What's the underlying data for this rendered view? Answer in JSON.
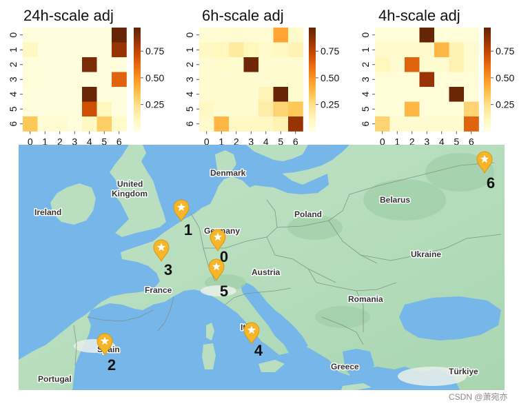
{
  "chart_data": [
    {
      "type": "heatmap",
      "title": "24h-scale adj",
      "x_ticks": [
        "0",
        "1",
        "2",
        "3",
        "4",
        "5",
        "6"
      ],
      "y_ticks": [
        "0",
        "1",
        "2",
        "3",
        "4",
        "5",
        "6"
      ],
      "values": [
        [
          0.03,
          0.03,
          0.03,
          0.03,
          0.03,
          0.03,
          0.97
        ],
        [
          0.1,
          0.03,
          0.03,
          0.03,
          0.03,
          0.03,
          0.85
        ],
        [
          0.03,
          0.03,
          0.03,
          0.03,
          0.92,
          0.03,
          0.03
        ],
        [
          0.04,
          0.03,
          0.03,
          0.03,
          0.03,
          0.03,
          0.65
        ],
        [
          0.03,
          0.03,
          0.03,
          0.03,
          0.96,
          0.03,
          0.03
        ],
        [
          0.03,
          0.03,
          0.03,
          0.03,
          0.72,
          0.12,
          0.03
        ],
        [
          0.35,
          0.05,
          0.06,
          0.03,
          0.1,
          0.32,
          0.08
        ]
      ],
      "colorbar_ticks": [
        0.25,
        0.5,
        0.75
      ],
      "colorbar_labels": [
        "0.25",
        "0.50",
        "0.75"
      ],
      "vmin": 0.0,
      "vmax": 0.97,
      "colormap": "YlOrBr"
    },
    {
      "type": "heatmap",
      "title": "6h-scale adj",
      "x_ticks": [
        "0",
        "1",
        "2",
        "3",
        "4",
        "5",
        "6"
      ],
      "y_ticks": [
        "0",
        "1",
        "2",
        "3",
        "4",
        "5",
        "6"
      ],
      "values": [
        [
          0.05,
          0.05,
          0.06,
          0.05,
          0.05,
          0.45,
          0.08
        ],
        [
          0.1,
          0.12,
          0.2,
          0.12,
          0.08,
          0.1,
          0.15
        ],
        [
          0.06,
          0.08,
          0.06,
          0.95,
          0.06,
          0.06,
          0.06
        ],
        [
          0.06,
          0.06,
          0.06,
          0.06,
          0.06,
          0.06,
          0.06
        ],
        [
          0.06,
          0.06,
          0.06,
          0.06,
          0.14,
          0.97,
          0.06
        ],
        [
          0.1,
          0.06,
          0.06,
          0.06,
          0.18,
          0.3,
          0.35
        ],
        [
          0.08,
          0.4,
          0.1,
          0.1,
          0.1,
          0.15,
          0.85
        ]
      ],
      "colorbar_ticks": [
        0.25,
        0.5,
        0.75
      ],
      "colorbar_labels": [
        "0.25",
        "0.50",
        "0.75"
      ],
      "vmin": 0.0,
      "vmax": 0.97,
      "colormap": "YlOrBr"
    },
    {
      "type": "heatmap",
      "title": "4h-scale adj",
      "x_ticks": [
        "0",
        "1",
        "2",
        "3",
        "4",
        "5",
        "6"
      ],
      "y_ticks": [
        "0",
        "1",
        "2",
        "3",
        "4",
        "5",
        "6"
      ],
      "values": [
        [
          0.04,
          0.04,
          0.04,
          0.97,
          0.04,
          0.04,
          0.04
        ],
        [
          0.08,
          0.08,
          0.08,
          0.08,
          0.4,
          0.15,
          0.06
        ],
        [
          0.12,
          0.06,
          0.65,
          0.06,
          0.06,
          0.15,
          0.06
        ],
        [
          0.04,
          0.04,
          0.04,
          0.85,
          0.04,
          0.04,
          0.04
        ],
        [
          0.04,
          0.04,
          0.04,
          0.04,
          0.04,
          0.96,
          0.04
        ],
        [
          0.04,
          0.04,
          0.4,
          0.04,
          0.04,
          0.04,
          0.3
        ],
        [
          0.3,
          0.06,
          0.06,
          0.06,
          0.06,
          0.06,
          0.65
        ]
      ],
      "colorbar_ticks": [
        0.25,
        0.5,
        0.75
      ],
      "colorbar_labels": [
        "0.25",
        "0.50",
        "0.75"
      ],
      "vmin": 0.0,
      "vmax": 0.97,
      "colormap": "YlOrBr"
    }
  ],
  "map": {
    "colors": {
      "sea": "#77b6e8",
      "land": "#b9dfc0",
      "land_dark": "#a3d3ac",
      "border": "#7d8d84",
      "marker": "#f7b52a",
      "marker_edge": "#d79a10"
    },
    "places": [
      {
        "name": "Denmark"
      },
      {
        "name": "United"
      },
      {
        "name": "Kingdom"
      },
      {
        "name": "Ireland"
      },
      {
        "name": "Belarus"
      },
      {
        "name": "Poland"
      },
      {
        "name": "Germany"
      },
      {
        "name": "Ukraine"
      },
      {
        "name": "Austria"
      },
      {
        "name": "France"
      },
      {
        "name": "Romania"
      },
      {
        "name": "Italy"
      },
      {
        "name": "Spain"
      },
      {
        "name": "Portugal"
      },
      {
        "name": "Greece"
      },
      {
        "name": "Türkiye"
      }
    ],
    "stations": [
      {
        "label": "0",
        "icon": "star-pin-icon"
      },
      {
        "label": "1",
        "icon": "star-pin-icon"
      },
      {
        "label": "2",
        "icon": "star-pin-icon"
      },
      {
        "label": "3",
        "icon": "star-pin-icon"
      },
      {
        "label": "4",
        "icon": "star-pin-icon"
      },
      {
        "label": "5",
        "icon": "star-pin-icon"
      },
      {
        "label": "6",
        "icon": "star-pin-icon"
      }
    ]
  },
  "watermark": "CSDN @萧宛亦"
}
